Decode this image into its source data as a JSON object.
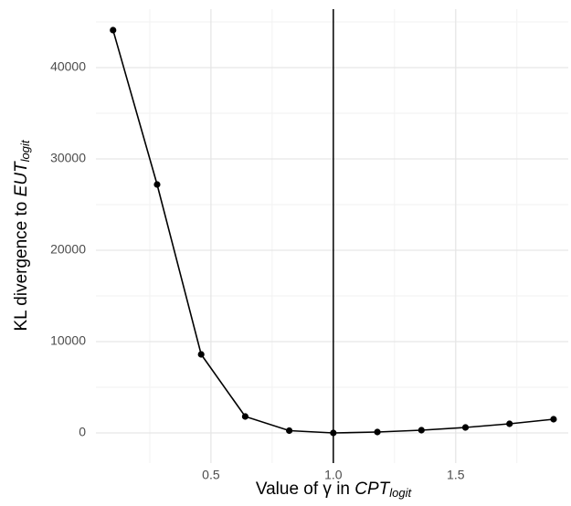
{
  "chart_data": {
    "type": "line",
    "x": [
      0.1,
      0.28,
      0.46,
      0.64,
      0.82,
      1.0,
      1.18,
      1.36,
      1.54,
      1.72,
      1.9
    ],
    "series": [
      {
        "color": "#000000",
        "values": [
          44100,
          27200,
          8600,
          1800,
          250,
          0,
          100,
          300,
          600,
          1000,
          1500
        ]
      }
    ],
    "xlim": [
      0.03,
      1.96
    ],
    "xticks": [
      0.5,
      {
        "value": 1,
        "label": "1.0"
      },
      1.5
    ],
    "ylim": [
      -3300,
      46400
    ],
    "yticks": [
      0,
      10000,
      20000,
      30000,
      40000
    ],
    "vline": 1,
    "grid": true,
    "xlabel": [
      "Value of γ in ",
      "CPT",
      "logit"
    ],
    "ylabel": [
      "KL divergence to ",
      "EUT",
      "logit"
    ]
  }
}
